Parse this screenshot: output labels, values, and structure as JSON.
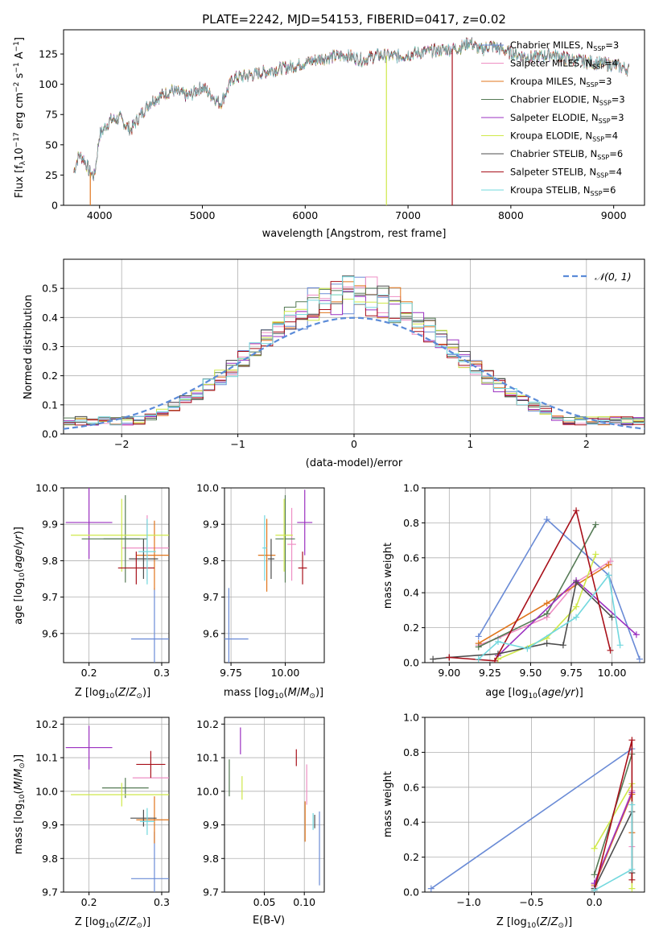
{
  "title": "PLATE=2242, MJD=54153, FIBERID=0417, z=0.02",
  "models": [
    {
      "name": "Chabrier MILES",
      "n_ssp": "3",
      "color": "#6a8bd6"
    },
    {
      "name": "Salpeter MILES",
      "n_ssp": "4",
      "color": "#ee8fc4"
    },
    {
      "name": "Kroupa MILES",
      "n_ssp": "3",
      "color": "#e0751c"
    },
    {
      "name": "Chabrier ELODIE",
      "n_ssp": "3",
      "color": "#557a55"
    },
    {
      "name": "Salpeter ELODIE",
      "n_ssp": "3",
      "color": "#9b30c0"
    },
    {
      "name": "Kroupa ELODIE",
      "n_ssp": "4",
      "color": "#cfe84a"
    },
    {
      "name": "Chabrier STELIB",
      "n_ssp": "6",
      "color": "#4d4d4d"
    },
    {
      "name": "Salpeter STELIB",
      "n_ssp": "4",
      "color": "#a8101a"
    },
    {
      "name": "Kroupa STELIB",
      "n_ssp": "6",
      "color": "#72d8de"
    }
  ],
  "chart_data": [
    {
      "id": "spectrum",
      "type": "line",
      "xlabel": "wavelength [Angstrom, rest frame]",
      "ylabel": "Flux [f",
      "xlim": [
        3650,
        9300
      ],
      "ylim": [
        0,
        145
      ],
      "xticks": [
        4000,
        5000,
        6000,
        7000,
        8000,
        9000
      ],
      "yticks": [
        0,
        25,
        50,
        75,
        100,
        125
      ],
      "x": [
        3750,
        3800,
        3850,
        3900,
        3950,
        4000,
        4100,
        4200,
        4300,
        4400,
        4500,
        4700,
        4860,
        5000,
        5175,
        5300,
        5500,
        5700,
        5890,
        6000,
        6200,
        6400,
        6563,
        6700,
        6900,
        7100,
        7300,
        7500,
        7600,
        7700,
        7800,
        8000,
        8200,
        8400,
        8600,
        8800,
        9000,
        9150
      ],
      "y": [
        28,
        42,
        38,
        28,
        24,
        58,
        70,
        72,
        62,
        75,
        86,
        95,
        90,
        98,
        84,
        105,
        108,
        112,
        115,
        118,
        122,
        124,
        120,
        124,
        123,
        126,
        128,
        130,
        135,
        128,
        132,
        126,
        122,
        125,
        120,
        118,
        116,
        112
      ],
      "spikes": [
        {
          "x": 3910,
          "y": 0
        },
        {
          "x": 6790,
          "y": 0
        },
        {
          "x": 7430,
          "y": 0
        }
      ]
    },
    {
      "id": "residuals",
      "type": "histogram",
      "xlabel": "(data-model)/error",
      "ylabel": "Normed distribution",
      "xlim": [
        -2.5,
        2.5
      ],
      "ylim": [
        0,
        0.6
      ],
      "xticks": [
        -2,
        -1,
        0,
        1,
        2
      ],
      "yticks": [
        0.0,
        0.1,
        0.2,
        0.3,
        0.4,
        0.5
      ],
      "legend": "𝒩(0, 1)",
      "bin_width": 0.1,
      "curve_color": "#5b8bd8"
    },
    {
      "id": "age_vs_Z",
      "type": "scatter",
      "xlabel": "Z [log",
      "ylabel": "age  [log",
      "xlim": [
        0.165,
        0.31
      ],
      "ylim": [
        9.52,
        10.0
      ],
      "xticks": [
        0.2,
        0.3
      ],
      "yticks": [
        9.6,
        9.7,
        9.8,
        9.9,
        10.0
      ],
      "points": [
        {
          "x": 0.29,
          "y": 9.585,
          "xerr": 0.032,
          "yerr": 0.14,
          "color": "#6a8bd6"
        },
        {
          "x": 0.28,
          "y": 9.835,
          "xerr": 0.035,
          "yerr": 0.09,
          "color": "#ee8fc4"
        },
        {
          "x": 0.29,
          "y": 9.815,
          "xerr": 0.025,
          "yerr": 0.095,
          "color": "#e0751c"
        },
        {
          "x": 0.25,
          "y": 9.86,
          "xerr": 0.03,
          "yerr": 0.12,
          "color": "#557a55"
        },
        {
          "x": 0.2,
          "y": 9.905,
          "xerr": 0.032,
          "yerr": 0.1,
          "color": "#9b30c0"
        },
        {
          "x": 0.245,
          "y": 9.87,
          "xerr": 0.07,
          "yerr": 0.1,
          "color": "#cfe84a"
        },
        {
          "x": 0.275,
          "y": 9.805,
          "xerr": 0.02,
          "yerr": 0.055,
          "color": "#4d4d4d"
        },
        {
          "x": 0.265,
          "y": 9.78,
          "xerr": 0.025,
          "yerr": 0.045,
          "color": "#a8101a"
        },
        {
          "x": 0.28,
          "y": 9.825,
          "xerr": 0.012,
          "yerr": 0.09,
          "color": "#72d8de"
        },
        {
          "x": 0.23,
          "y": 9.86,
          "xerr": 0.04,
          "yerr": 0.0,
          "color": "#557a55"
        }
      ]
    },
    {
      "id": "age_vs_mass",
      "type": "scatter",
      "xlabel": "mass [log",
      "ylabel": "",
      "xlim": [
        9.72,
        10.18
      ],
      "ylim": [
        9.52,
        10.0
      ],
      "xticks": [
        9.75,
        10.0
      ],
      "yticks": [
        9.6,
        9.7,
        9.8,
        9.9,
        10.0
      ],
      "points": [
        {
          "x": 9.74,
          "y": 9.585,
          "xerr": 0.09,
          "yerr": 0.14,
          "color": "#6a8bd6"
        },
        {
          "x": 10.03,
          "y": 9.845,
          "xerr": 0.02,
          "yerr": 0.1,
          "color": "#ee8fc4"
        },
        {
          "x": 9.915,
          "y": 9.815,
          "xerr": 0.04,
          "yerr": 0.1,
          "color": "#e0751c"
        },
        {
          "x": 10.0,
          "y": 9.86,
          "xerr": 0.045,
          "yerr": 0.12,
          "color": "#557a55"
        },
        {
          "x": 10.09,
          "y": 9.905,
          "xerr": 0.035,
          "yerr": 0.09,
          "color": "#9b30c0"
        },
        {
          "x": 9.995,
          "y": 9.87,
          "xerr": 0.04,
          "yerr": 0.1,
          "color": "#cfe84a"
        },
        {
          "x": 9.935,
          "y": 9.805,
          "xerr": 0.015,
          "yerr": 0.055,
          "color": "#4d4d4d"
        },
        {
          "x": 10.08,
          "y": 9.78,
          "xerr": 0.02,
          "yerr": 0.045,
          "color": "#a8101a"
        },
        {
          "x": 9.905,
          "y": 9.835,
          "xerr": 0.01,
          "yerr": 0.09,
          "color": "#72d8de"
        }
      ]
    },
    {
      "id": "mass_weight_vs_age",
      "type": "line",
      "xlabel": "age  [log",
      "ylabel": "mass weight",
      "xlim": [
        8.85,
        10.2
      ],
      "ylim": [
        0,
        1.0
      ],
      "xticks": [
        9.0,
        9.25,
        9.5,
        9.75,
        10.0
      ],
      "yticks": [
        0.0,
        0.2,
        0.4,
        0.6,
        0.8,
        1.0
      ],
      "series": [
        {
          "x": [
            9.18,
            9.6,
            9.98,
            10.17
          ],
          "y": [
            0.15,
            0.82,
            0.5,
            0.02
          ],
          "color": "#6a8bd6"
        },
        {
          "x": [
            9.18,
            9.3,
            9.6,
            9.78,
            9.99
          ],
          "y": [
            0.1,
            0.14,
            0.26,
            0.46,
            0.58
          ],
          "color": "#ee8fc4"
        },
        {
          "x": [
            9.18,
            9.6,
            9.98
          ],
          "y": [
            0.11,
            0.34,
            0.56
          ],
          "color": "#e0751c"
        },
        {
          "x": [
            9.18,
            9.6,
            9.9
          ],
          "y": [
            0.09,
            0.28,
            0.79
          ],
          "color": "#557a55"
        },
        {
          "x": [
            9.3,
            9.78,
            10.15
          ],
          "y": [
            0.04,
            0.47,
            0.16
          ],
          "color": "#9b30c0"
        },
        {
          "x": [
            9.3,
            9.6,
            9.78,
            9.9
          ],
          "y": [
            0.02,
            0.14,
            0.32,
            0.62
          ],
          "color": "#cfe84a"
        },
        {
          "x": [
            8.9,
            9.0,
            9.3,
            9.6,
            9.7,
            9.78,
            10.0
          ],
          "y": [
            0.02,
            0.03,
            0.05,
            0.11,
            0.1,
            0.46,
            0.26
          ],
          "color": "#4d4d4d"
        },
        {
          "x": [
            9.0,
            9.28,
            9.78,
            9.99
          ],
          "y": [
            0.03,
            0.01,
            0.87,
            0.07
          ],
          "color": "#a8101a"
        },
        {
          "x": [
            9.18,
            9.3,
            9.48,
            9.78,
            9.98,
            10.05
          ],
          "y": [
            0.02,
            0.12,
            0.08,
            0.26,
            0.5,
            0.1
          ],
          "color": "#72d8de"
        }
      ]
    },
    {
      "id": "mass_vs_Z",
      "type": "scatter",
      "xlabel": "Z [log",
      "ylabel": "mass [log",
      "xlim": [
        0.165,
        0.31
      ],
      "ylim": [
        9.7,
        10.22
      ],
      "xticks": [
        0.2,
        0.3
      ],
      "yticks": [
        9.7,
        9.8,
        9.9,
        10.0,
        10.1,
        10.2
      ],
      "points": [
        {
          "x": 0.29,
          "y": 9.74,
          "xerr": 0.032,
          "yerr": 0.14,
          "color": "#6a8bd6"
        },
        {
          "x": 0.285,
          "y": 10.04,
          "xerr": 0.025,
          "yerr": 0.0,
          "color": "#ee8fc4"
        },
        {
          "x": 0.29,
          "y": 9.915,
          "xerr": 0.025,
          "yerr": 0.07,
          "color": "#e0751c"
        },
        {
          "x": 0.25,
          "y": 10.01,
          "xerr": 0.032,
          "yerr": 0.03,
          "color": "#557a55"
        },
        {
          "x": 0.2,
          "y": 10.13,
          "xerr": 0.032,
          "yerr": 0.065,
          "color": "#9b30c0"
        },
        {
          "x": 0.245,
          "y": 9.99,
          "xerr": 0.07,
          "yerr": 0.035,
          "color": "#cfe84a"
        },
        {
          "x": 0.275,
          "y": 9.92,
          "xerr": 0.018,
          "yerr": 0.025,
          "color": "#4d4d4d"
        },
        {
          "x": 0.285,
          "y": 10.08,
          "xerr": 0.02,
          "yerr": 0.04,
          "color": "#a8101a"
        },
        {
          "x": 0.28,
          "y": 9.91,
          "xerr": 0.01,
          "yerr": 0.04,
          "color": "#72d8de"
        }
      ]
    },
    {
      "id": "mass_vs_ebv",
      "type": "scatter",
      "xlabel": "E(B-V)",
      "ylabel": "",
      "xlim": [
        0.0,
        0.125
      ],
      "ylim": [
        9.7,
        10.22
      ],
      "xticks": [
        0.05,
        0.1
      ],
      "yticks": [
        9.7,
        9.8,
        9.9,
        10.0,
        10.1,
        10.2
      ],
      "points": [
        {
          "x": 0.119,
          "y": 9.83,
          "xerr": 0,
          "yerr": 0.11,
          "color": "#6a8bd6"
        },
        {
          "x": 0.103,
          "y": 10.02,
          "xerr": 0,
          "yerr": 0.06,
          "color": "#ee8fc4"
        },
        {
          "x": 0.101,
          "y": 9.91,
          "xerr": 0,
          "yerr": 0.06,
          "color": "#e0751c"
        },
        {
          "x": 0.006,
          "y": 10.04,
          "xerr": 0,
          "yerr": 0.055,
          "color": "#557a55"
        },
        {
          "x": 0.02,
          "y": 10.15,
          "xerr": 0,
          "yerr": 0.04,
          "color": "#9b30c0"
        },
        {
          "x": 0.022,
          "y": 10.01,
          "xerr": 0,
          "yerr": 0.035,
          "color": "#cfe84a"
        },
        {
          "x": 0.113,
          "y": 9.91,
          "xerr": 0,
          "yerr": 0.02,
          "color": "#4d4d4d"
        },
        {
          "x": 0.09,
          "y": 10.1,
          "xerr": 0,
          "yerr": 0.025,
          "color": "#a8101a"
        },
        {
          "x": 0.111,
          "y": 9.91,
          "xerr": 0,
          "yerr": 0.025,
          "color": "#72d8de"
        }
      ]
    },
    {
      "id": "mass_weight_vs_Z",
      "type": "line",
      "xlabel": "Z [log",
      "ylabel": "mass weight",
      "xlim": [
        -1.35,
        0.4
      ],
      "ylim": [
        0,
        1.0
      ],
      "xticks": [
        -1.0,
        -0.5,
        0.0
      ],
      "yticks": [
        0.0,
        0.2,
        0.4,
        0.6,
        0.8,
        1.0
      ],
      "series": [
        {
          "x": [
            -1.3,
            0.3
          ],
          "y": [
            0.02,
            0.82
          ],
          "color": "#6a8bd6"
        },
        {
          "x": [
            0.0,
            0.3,
            0.3
          ],
          "y": [
            0.03,
            0.58,
            0.26
          ],
          "color": "#ee8fc4"
        },
        {
          "x": [
            0.0,
            0.3,
            0.3
          ],
          "y": [
            0.04,
            0.56,
            0.34
          ],
          "color": "#e0751c"
        },
        {
          "x": [
            0.0,
            0.3
          ],
          "y": [
            0.1,
            0.79
          ],
          "color": "#557a55"
        },
        {
          "x": [
            0.0,
            0.3
          ],
          "y": [
            0.05,
            0.57
          ],
          "color": "#9b30c0"
        },
        {
          "x": [
            0.0,
            0.3,
            0.3
          ],
          "y": [
            0.25,
            0.62,
            0.02
          ],
          "color": "#cfe84a"
        },
        {
          "x": [
            0.0,
            0.3,
            0.3
          ],
          "y": [
            0.02,
            0.46,
            0.11
          ],
          "color": "#4d4d4d"
        },
        {
          "x": [
            0.0,
            0.3,
            0.3
          ],
          "y": [
            0.01,
            0.87,
            0.07
          ],
          "color": "#a8101a"
        },
        {
          "x": [
            0.0,
            0.3,
            0.3
          ],
          "y": [
            0.01,
            0.13,
            0.5
          ],
          "color": "#72d8de"
        }
      ]
    }
  ],
  "labels": {
    "flux_ylabel_rest": "10",
    "flux_ylabel_tail": "erg cm",
    "age_Z_xsub": "(Z/Z",
    "mass_xlabel_tail": "(M/M"
  }
}
